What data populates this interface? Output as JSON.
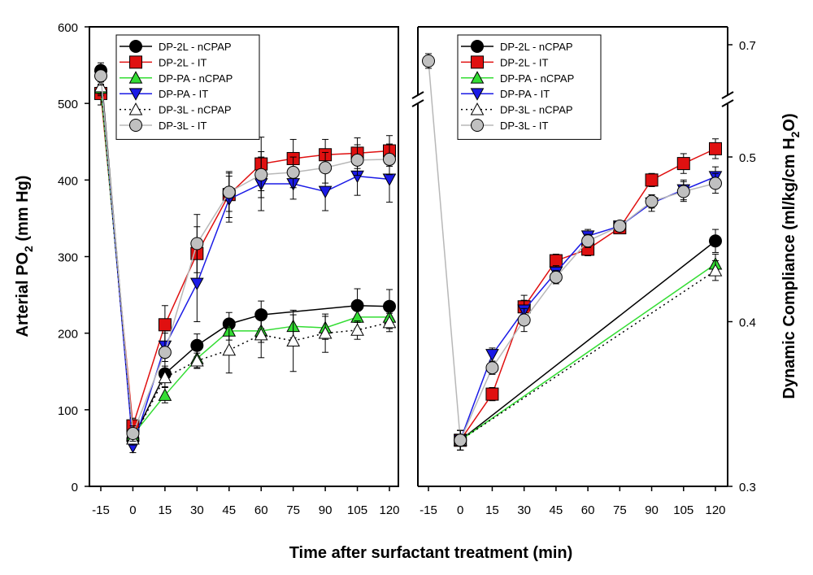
{
  "figure": {
    "xlabel": "Time after surfactant treatment (min)"
  },
  "chart_data": [
    {
      "type": "line",
      "ylabel": "Arterial PO",
      "ylabel_sub": "2",
      "ylabel_suffix": " (mm Hg)",
      "ylim": [
        0,
        600
      ],
      "yticks": [
        0,
        100,
        200,
        300,
        400,
        500,
        600
      ],
      "x_tick_labels": [
        "-15",
        "0",
        "15",
        "30",
        "45",
        "60",
        "75",
        "90",
        "105",
        "120"
      ],
      "legend_position": "top-right",
      "series": [
        {
          "name": "DP-2L - nCPAP",
          "marker": "circle",
          "fill": "#000000",
          "line_color": "#000000",
          "dash": "solid",
          "x": [
            -15,
            0,
            15,
            30,
            45,
            60,
            105,
            120
          ],
          "y": [
            543,
            62,
            147,
            184,
            212,
            224,
            236,
            235
          ],
          "err": [
            10,
            8,
            10,
            15,
            15,
            18,
            22,
            22
          ]
        },
        {
          "name": "DP-2L - IT",
          "marker": "square",
          "fill": "#e01010",
          "line_color": "#e01010",
          "dash": "solid",
          "x": [
            -15,
            0,
            15,
            30,
            45,
            60,
            75,
            90,
            105,
            120
          ],
          "y": [
            513,
            79,
            211,
            304,
            381,
            421,
            428,
            433,
            435,
            438
          ],
          "err": [
            15,
            10,
            25,
            35,
            30,
            35,
            25,
            20,
            20,
            20
          ]
        },
        {
          "name": "DP-PA - nCPAP",
          "marker": "triangle-up",
          "fill": "#33dd33",
          "line_color": "#33dd33",
          "dash": "solid",
          "x": [
            -15,
            0,
            15,
            30,
            45,
            60,
            75,
            90,
            105,
            120
          ],
          "y": [
            520,
            67,
            119,
            167,
            203,
            203,
            209,
            207,
            221,
            221
          ],
          "err": [
            10,
            8,
            10,
            12,
            12,
            15,
            15,
            15,
            15,
            15
          ]
        },
        {
          "name": "DP-PA - IT",
          "marker": "triangle-down",
          "fill": "#1a1ae6",
          "line_color": "#1a1ae6",
          "dash": "solid",
          "x": [
            -15,
            0,
            15,
            30,
            45,
            60,
            75,
            90,
            105,
            120
          ],
          "y": [
            535,
            52,
            183,
            265,
            375,
            395,
            395,
            385,
            405,
            401
          ],
          "err": [
            10,
            8,
            20,
            50,
            30,
            35,
            20,
            25,
            25,
            30
          ]
        },
        {
          "name": "DP-3L - nCPAP",
          "marker": "triangle-up",
          "fill": "#ffffff",
          "line_color": "#000000",
          "dash": "dotted",
          "x": [
            -15,
            0,
            15,
            30,
            45,
            60,
            75,
            90,
            105,
            120
          ],
          "y": [
            522,
            62,
            142,
            164,
            178,
            198,
            190,
            200,
            204,
            214
          ],
          "err": [
            10,
            8,
            12,
            10,
            30,
            30,
            40,
            25,
            12,
            12
          ]
        },
        {
          "name": "DP-3L - IT",
          "marker": "circle",
          "fill": "#c0c0c0",
          "line_color": "#b8b8b8",
          "dash": "solid",
          "x": [
            -15,
            0,
            15,
            30,
            45,
            60,
            75,
            90,
            105,
            120
          ],
          "y": [
            536,
            69,
            175,
            317,
            384,
            407,
            410,
            416,
            426,
            427
          ],
          "err": [
            12,
            10,
            25,
            38,
            25,
            30,
            20,
            20,
            20,
            20
          ]
        }
      ]
    },
    {
      "type": "line",
      "ylabel": "Dynamic Compliance (ml/kg/cm H",
      "ylabel_sub": "2",
      "ylabel_suffix": "O)",
      "ylim": [
        0.3,
        0.7
      ],
      "yticks": [
        0.3,
        0.4,
        0.5,
        0.7
      ],
      "ytick_labels": [
        "0.3",
        "0.4",
        "0.5",
        "0.7"
      ],
      "axis_break_between": [
        0.5,
        0.7
      ],
      "x_tick_labels": [
        "-15",
        "0",
        "15",
        "30",
        "45",
        "60",
        "75",
        "90",
        "105",
        "120"
      ],
      "legend_position": "top-left",
      "series": [
        {
          "name": "DP-2L - nCPAP",
          "marker": "circle",
          "fill": "#000000",
          "line_color": "#000000",
          "dash": "solid",
          "x": [
            0,
            120
          ],
          "y": [
            0.328,
            0.449
          ],
          "err": [
            0.006,
            0.007
          ]
        },
        {
          "name": "DP-2L - IT",
          "marker": "square",
          "fill": "#e01010",
          "line_color": "#e01010",
          "dash": "solid",
          "x": [
            0,
            15,
            30,
            45,
            60,
            75,
            90,
            105,
            120
          ],
          "y": [
            0.328,
            0.356,
            0.409,
            0.437,
            0.444,
            0.457,
            0.486,
            0.496,
            0.505
          ],
          "err": [
            0.006,
            0.004,
            0.007,
            0.004,
            0.004,
            0.003,
            0.004,
            0.006,
            0.006
          ]
        },
        {
          "name": "DP-PA - nCPAP",
          "marker": "triangle-up",
          "fill": "#33dd33",
          "line_color": "#33dd33",
          "dash": "solid",
          "x": [
            0,
            120
          ],
          "y": [
            0.328,
            0.435
          ],
          "err": [
            0.006,
            0.006
          ]
        },
        {
          "name": "DP-PA - IT",
          "marker": "triangle-down",
          "fill": "#1a1ae6",
          "line_color": "#1a1ae6",
          "dash": "solid",
          "x": [
            0,
            15,
            30,
            45,
            60,
            75,
            90,
            105,
            120
          ],
          "y": [
            0.328,
            0.38,
            0.407,
            0.43,
            0.452,
            0.458,
            0.472,
            0.48,
            0.488
          ],
          "err": [
            0.006,
            0.004,
            0.006,
            0.004,
            0.004,
            0.003,
            0.005,
            0.006,
            0.006
          ]
        },
        {
          "name": "DP-3L - nCPAP",
          "marker": "triangle-up",
          "fill": "#ffffff",
          "line_color": "#000000",
          "dash": "dotted",
          "x": [
            0,
            120
          ],
          "y": [
            0.328,
            0.431
          ],
          "err": [
            0.006,
            0.006
          ]
        },
        {
          "name": "DP-3L - IT",
          "marker": "circle",
          "fill": "#c0c0c0",
          "line_color": "#b8b8b8",
          "dash": "solid",
          "x": [
            -15,
            0,
            15,
            30,
            45,
            60,
            75,
            90,
            105,
            120
          ],
          "y": [
            0.68,
            0.328,
            0.372,
            0.401,
            0.427,
            0.449,
            0.458,
            0.473,
            0.479,
            0.484
          ],
          "err": [
            0.009,
            0.006,
            0.004,
            0.007,
            0.004,
            0.004,
            0.003,
            0.004,
            0.006,
            0.006
          ]
        }
      ]
    }
  ]
}
